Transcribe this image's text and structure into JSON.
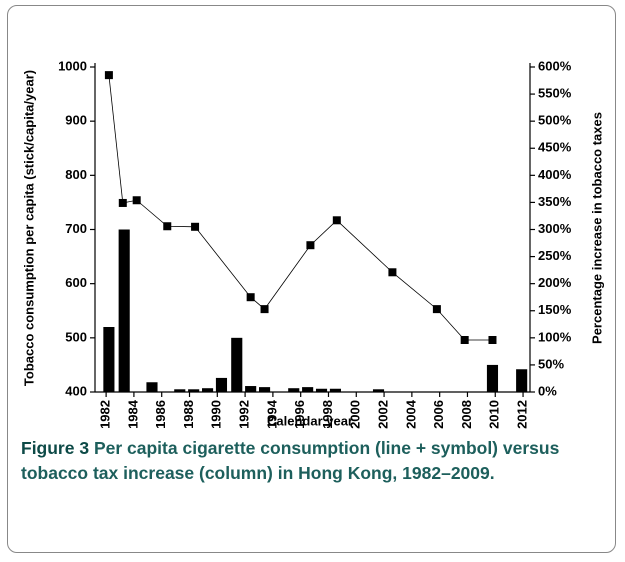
{
  "chart_data": {
    "type": "combo",
    "xlabel": "Calendar year",
    "ylabel": "Tobacco consumption per capita (stick/capita/year)",
    "y2label": "Percentage increase in tobacco taxes",
    "xlim": [
      1981.2,
      2012.5
    ],
    "xticks": [
      1982,
      1984,
      1986,
      1988,
      1990,
      1992,
      1994,
      1996,
      1998,
      2000,
      2002,
      2004,
      2006,
      2008,
      2010,
      2012
    ],
    "ylim": [
      400,
      1000
    ],
    "yticks": [
      400,
      500,
      600,
      700,
      800,
      900,
      1000
    ],
    "y2lim": [
      0,
      600
    ],
    "y2ticks": [
      {
        "value": 0,
        "label": "0%"
      },
      {
        "value": 50,
        "label": "50%"
      },
      {
        "value": 100,
        "label": "100%"
      },
      {
        "value": 150,
        "label": "150%"
      },
      {
        "value": 200,
        "label": "200%"
      },
      {
        "value": 250,
        "label": "250%"
      },
      {
        "value": 300,
        "label": "300%"
      },
      {
        "value": 350,
        "label": "350%"
      },
      {
        "value": 400,
        "label": "400%"
      },
      {
        "value": 450,
        "label": "450%"
      },
      {
        "value": 500,
        "label": "500%"
      },
      {
        "value": 550,
        "label": "550%"
      },
      {
        "value": 600,
        "label": "600%"
      }
    ],
    "series": [
      {
        "type": "bar",
        "axis": "y2",
        "color": "#000000",
        "x": [
          1982.2,
          1983.3,
          1985.3,
          1987.3,
          1988.3,
          1989.3,
          1990.3,
          1991.4,
          1992.4,
          1993.4,
          1995.5,
          1996.5,
          1997.5,
          1998.5,
          2001.6,
          2009.8,
          2011.9
        ],
        "values": [
          120,
          300,
          18,
          5,
          5,
          7,
          26,
          100,
          11,
          9,
          7,
          9,
          6,
          6,
          5,
          50,
          42
        ]
      },
      {
        "type": "line",
        "color": "#000000",
        "x": [
          1982.2,
          1983.2,
          1984.2,
          1986.4,
          1988.4,
          1992.4,
          1993.4,
          1996.7,
          1998.6,
          2002.6,
          2005.8,
          2007.8,
          2009.8
        ],
        "values": [
          985,
          749,
          754,
          706,
          705,
          575,
          553,
          671,
          717,
          621,
          553,
          496,
          496
        ]
      }
    ]
  },
  "caption": {
    "label": "Figure 3",
    "text": "Per capita cigarette consumption (line + symbol) versus tobacco tax increase (column) in Hong Kong, 1982–2009."
  }
}
